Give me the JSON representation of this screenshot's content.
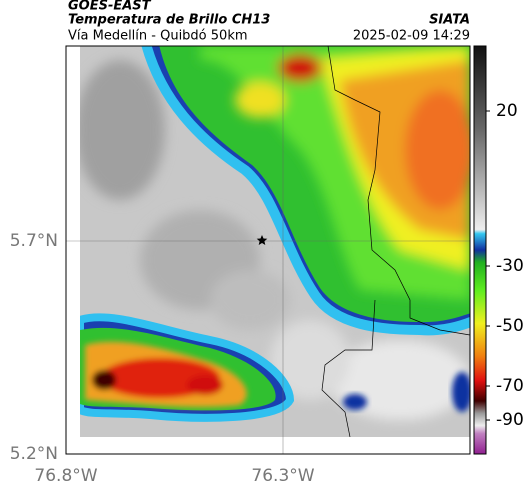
{
  "header": {
    "source": "GOES-EAST",
    "product": "Temperatura de Brillo CH13",
    "region": "Vía Medellín - Quibdó 50km",
    "org": "SIATA",
    "timestamp": "2025-02-09 14:29"
  },
  "axes": {
    "lat_labels": [
      "5.7°N",
      "5.2°N"
    ],
    "lon_labels": [
      "76.8°W",
      "76.3°W"
    ]
  },
  "colorbar": {
    "ticks": [
      20,
      -30,
      -50,
      -70,
      -90
    ]
  }
}
